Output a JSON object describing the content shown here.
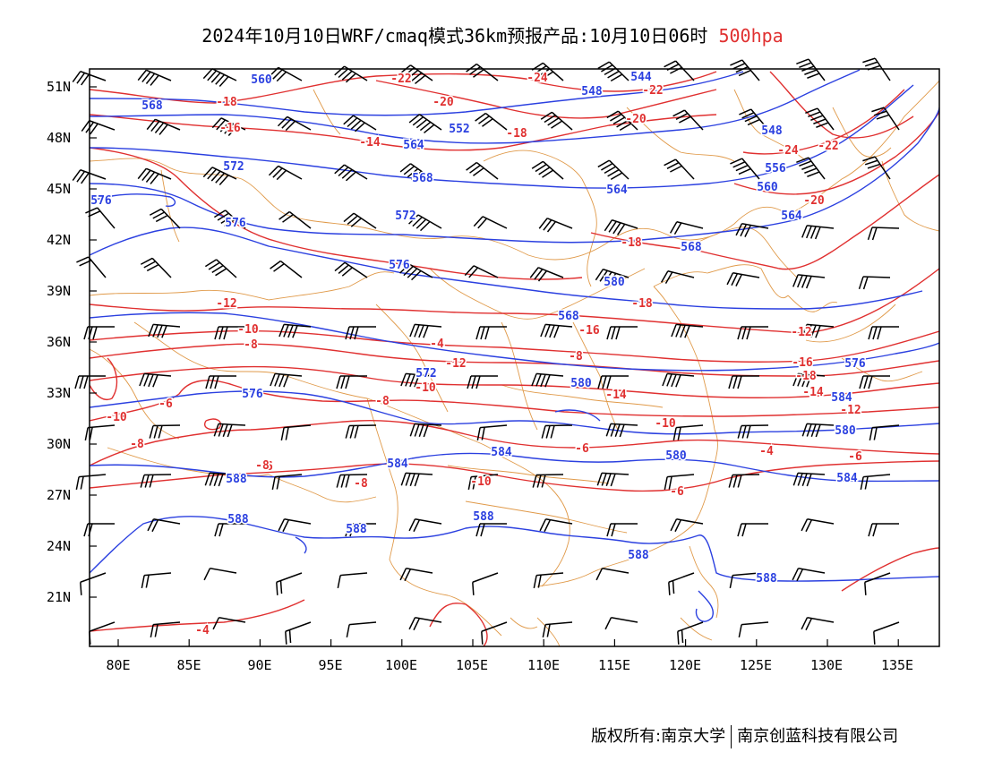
{
  "title": {
    "main": "2024年10月10日WRF/cmaq模式36km预报产品:10月10日06时",
    "level": "500hpa",
    "level_color": "#e03030"
  },
  "axes": {
    "lat_ticks": [
      "51N",
      "48N",
      "45N",
      "42N",
      "39N",
      "36N",
      "33N",
      "30N",
      "27N",
      "24N",
      "21N"
    ],
    "lon_ticks": [
      "80E",
      "85E",
      "90E",
      "95E",
      "100E",
      "105E",
      "110E",
      "115E",
      "120E",
      "125E",
      "130E",
      "135E"
    ]
  },
  "colors": {
    "height": "#2b40e0",
    "temperature": "#e03030",
    "border": "#e09a4a",
    "wind": "#000000"
  },
  "geopotential_labels": [
    "568",
    "560",
    "564",
    "552",
    "548",
    "544",
    "572",
    "576",
    "568",
    "564",
    "560",
    "556",
    "548",
    "564",
    "568",
    "576",
    "572",
    "576",
    "580",
    "568",
    "572",
    "576",
    "580",
    "580",
    "576",
    "584",
    "584",
    "584",
    "580",
    "584",
    "588",
    "588",
    "588",
    "588",
    "588",
    "588"
  ],
  "temperature_labels": [
    "-18",
    "-16",
    "-14",
    "-22",
    "-20",
    "-24",
    "-22",
    "-20",
    "-18",
    "-24",
    "-22",
    "-20",
    "-18",
    "-18",
    "-16",
    "-12",
    "-10",
    "-8",
    "-4",
    "-12",
    "-10",
    "-8",
    "-14",
    "-12",
    "-16",
    "-18",
    "-14",
    "-12",
    "-10",
    "-6",
    "-10",
    "-8",
    "-6",
    "-4",
    "-6",
    "-8",
    "-6",
    "-8",
    "-10",
    "-6",
    "-8",
    "-4"
  ],
  "footer": {
    "copyright_left": "版权所有:南京大学",
    "copyright_right": "南京创蓝科技有限公司"
  }
}
